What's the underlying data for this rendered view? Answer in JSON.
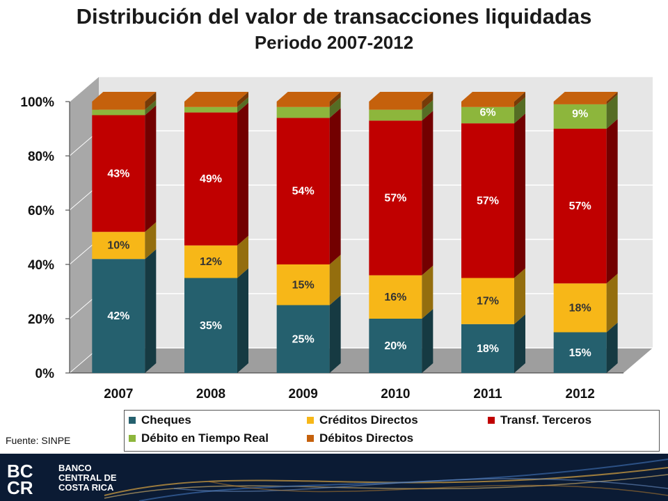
{
  "chart_data": {
    "type": "bar",
    "stacked": true,
    "title": "Distribución del valor de transacciones liquidadas",
    "subtitle": "Periodo 2007-2012",
    "categories": [
      "2007",
      "2008",
      "2009",
      "2010",
      "2011",
      "2012"
    ],
    "y_ticks": [
      "0%",
      "20%",
      "40%",
      "60%",
      "80%",
      "100%"
    ],
    "ylim": [
      0,
      100
    ],
    "legend_position": "bottom",
    "series": [
      {
        "name": "Cheques",
        "color": "#25606E",
        "values": [
          42,
          35,
          25,
          20,
          18,
          15
        ],
        "labels": [
          "42%",
          "35%",
          "25%",
          "20%",
          "18%",
          "15%"
        ]
      },
      {
        "name": "Créditos Directos",
        "color": "#F7B718",
        "values": [
          10,
          12,
          15,
          16,
          17,
          18
        ],
        "labels": [
          "10%",
          "12%",
          "15%",
          "16%",
          "17%",
          "18%"
        ]
      },
      {
        "name": "Transf. Terceros",
        "color": "#C00000",
        "values": [
          43,
          49,
          54,
          57,
          57,
          57
        ],
        "labels": [
          "43%",
          "49%",
          "54%",
          "57%",
          "57%",
          "57%"
        ]
      },
      {
        "name": "Débito en Tiempo Real",
        "color": "#8DB63C",
        "values": [
          2,
          2,
          4,
          4,
          6,
          9
        ],
        "labels": [
          "",
          "",
          "",
          "",
          "6%",
          "9%"
        ]
      },
      {
        "name": "Débitos Directos",
        "color": "#C5610C",
        "values": [
          3,
          2,
          2,
          3,
          2,
          1
        ],
        "labels": [
          "",
          "",
          "",
          "",
          "",
          ""
        ]
      }
    ]
  },
  "source": "Fuente: SINPE",
  "footer": {
    "logo_mark": "BCCR",
    "logo_lines": [
      "BANCO",
      "CENTRAL DE",
      "COSTA RICA"
    ]
  }
}
